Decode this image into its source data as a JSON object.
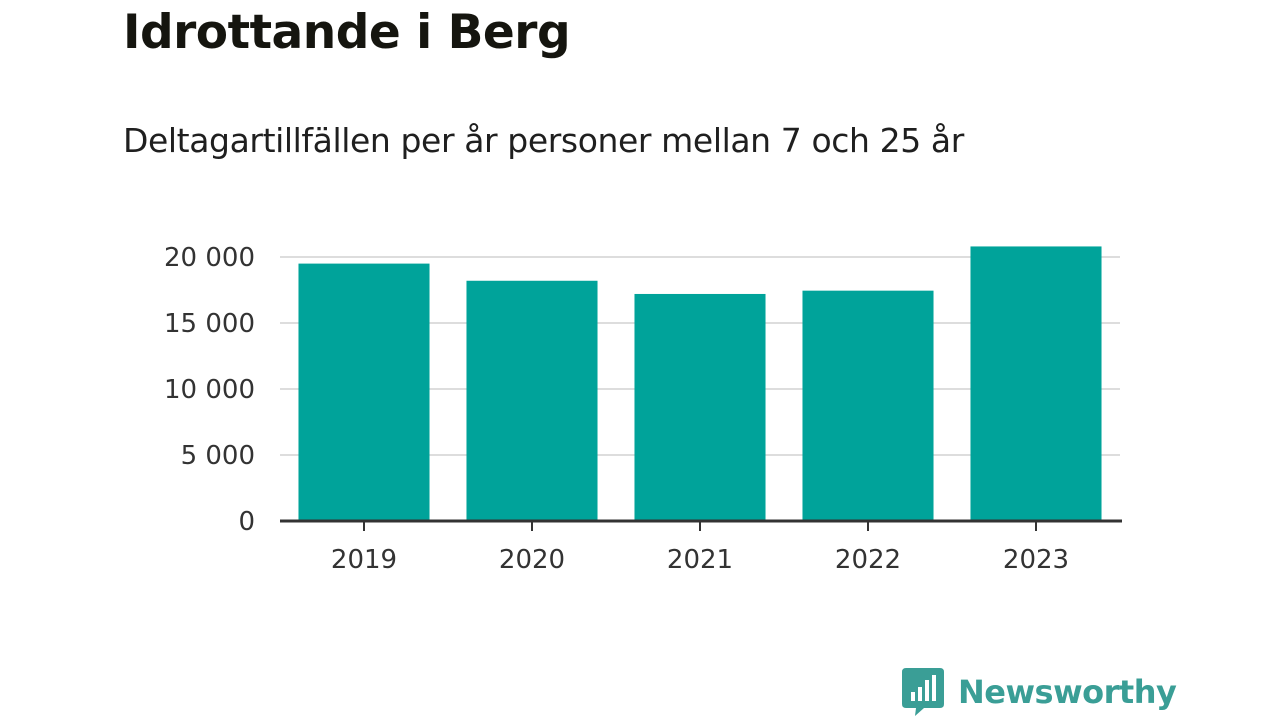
{
  "title": "Idrottande i Berg",
  "subtitle": "Deltagartillfällen per år personer mellan 7 och 25 år",
  "brand": {
    "name": "Newsworthy",
    "logo_icon": "bar-chart-speech-bubble-icon",
    "color": "#3a9e96"
  },
  "colors": {
    "bar": "#00a39a",
    "grid": "#dddddd",
    "axis": "#333333"
  },
  "chart_data": {
    "type": "bar",
    "title": "Idrottande i Berg",
    "subtitle": "Deltagartillfällen per år personer mellan 7 och 25 år",
    "xlabel": "",
    "ylabel": "",
    "categories": [
      "2019",
      "2020",
      "2021",
      "2022",
      "2023"
    ],
    "values": [
      19500,
      18200,
      17200,
      17450,
      20800
    ],
    "ylim": [
      0,
      20000
    ],
    "yticks": [
      0,
      5000,
      10000,
      15000,
      20000
    ],
    "ytick_labels": [
      "0",
      "5 000",
      "10 000",
      "15 000",
      "20 000"
    ],
    "grid": true,
    "legend": "none"
  }
}
